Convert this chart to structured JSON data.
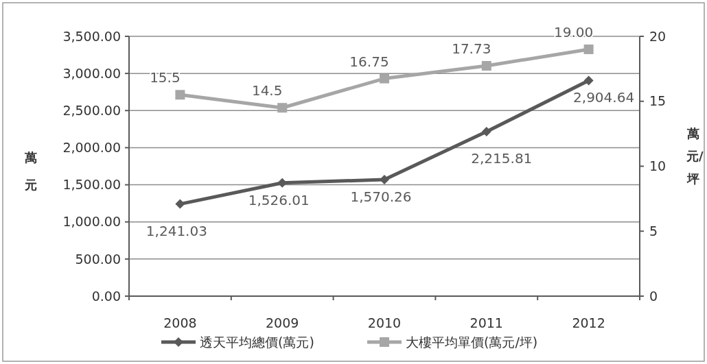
{
  "chart_data": {
    "type": "line",
    "categories": [
      "2008",
      "2009",
      "2010",
      "2011",
      "2012"
    ],
    "ylabel": "萬元",
    "y2label": "萬元/坪",
    "ylim": [
      0,
      3500
    ],
    "yticks": [
      {
        "value": 0,
        "label": "0.00"
      },
      {
        "value": 500,
        "label": "500.00"
      },
      {
        "value": 1000,
        "label": "1,000.00"
      },
      {
        "value": 1500,
        "label": "1,500.00"
      },
      {
        "value": 2000,
        "label": "2,000.00"
      },
      {
        "value": 2500,
        "label": "2,500.00"
      },
      {
        "value": 3000,
        "label": "3,000.00"
      },
      {
        "value": 3500,
        "label": "3,500.00"
      }
    ],
    "y2lim": [
      0,
      20
    ],
    "y2ticks": [
      0,
      5,
      10,
      15,
      20
    ],
    "grid": "y",
    "legend": "bottom",
    "line_style": "solid",
    "series": [
      {
        "name": "透天平均總價(萬元)",
        "color": "#595959",
        "marker": "diamond",
        "values": [
          1241.03,
          1526.01,
          1570.26,
          2215.81,
          2904.64
        ],
        "value_labels": [
          "1,241.03",
          "1,526.01",
          "1,570.26",
          "2,215.81",
          "2,904.64"
        ]
      },
      {
        "name": "大樓平均單價(萬元/坪)",
        "color": "#a6a6a6",
        "marker": "square",
        "axis": "y2",
        "values": [
          15.5,
          14.5,
          16.75,
          17.73,
          19.0
        ],
        "value_labels": [
          "15.5",
          "14.5",
          "16.75",
          "17.73",
          "19.00"
        ]
      }
    ]
  }
}
